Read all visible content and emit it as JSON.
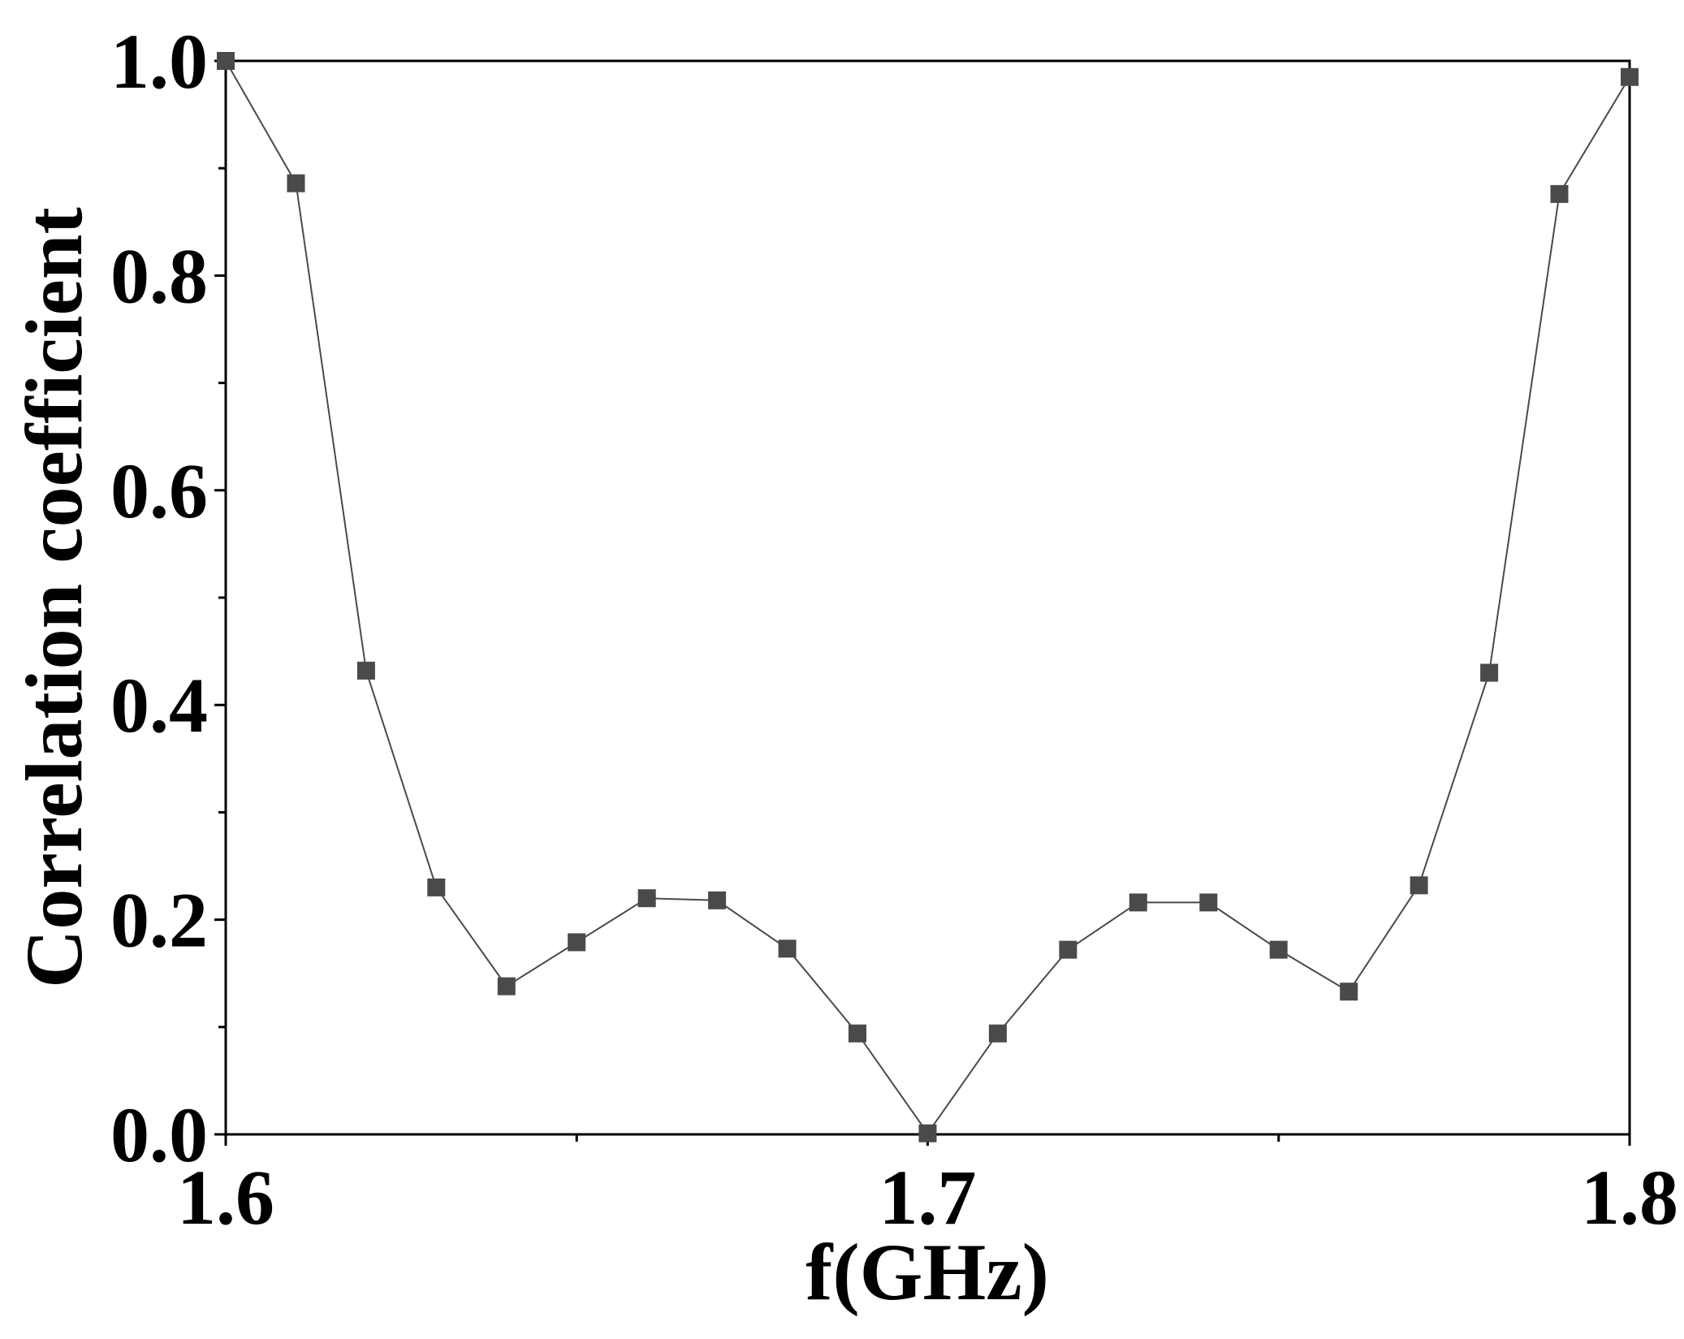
{
  "chart_data": {
    "type": "line",
    "title": "",
    "xlabel": "f(GHz)",
    "ylabel": "Correlation coefficient",
    "xlim": [
      1.6,
      1.8
    ],
    "ylim": [
      0.0,
      1.0
    ],
    "x_ticks": [
      1.6,
      1.65,
      1.7,
      1.75,
      1.8
    ],
    "x_tick_labels": [
      "1.6",
      "",
      "1.7",
      "",
      "1.8"
    ],
    "y_ticks": [
      0.0,
      0.1,
      0.2,
      0.3,
      0.4,
      0.5,
      0.6,
      0.7,
      0.8,
      0.9,
      1.0
    ],
    "y_tick_labels": [
      "0.0",
      "",
      "0.2",
      "",
      "0.4",
      "",
      "0.6",
      "",
      "0.8",
      "",
      "1.0"
    ],
    "grid": false,
    "legend": "none",
    "series": [
      {
        "marker": "square",
        "color": "#4a4a4a",
        "x": [
          1.6,
          1.61,
          1.62,
          1.63,
          1.64,
          1.65,
          1.66,
          1.67,
          1.68,
          1.69,
          1.7,
          1.71,
          1.72,
          1.73,
          1.74,
          1.75,
          1.76,
          1.77,
          1.78,
          1.79,
          1.8
        ],
        "y": [
          1.0,
          0.886,
          0.432,
          0.23,
          0.138,
          0.179,
          0.22,
          0.218,
          0.173,
          0.094,
          0.001,
          0.094,
          0.172,
          0.216,
          0.216,
          0.172,
          0.133,
          0.232,
          0.43,
          0.876,
          0.985
        ]
      }
    ]
  }
}
